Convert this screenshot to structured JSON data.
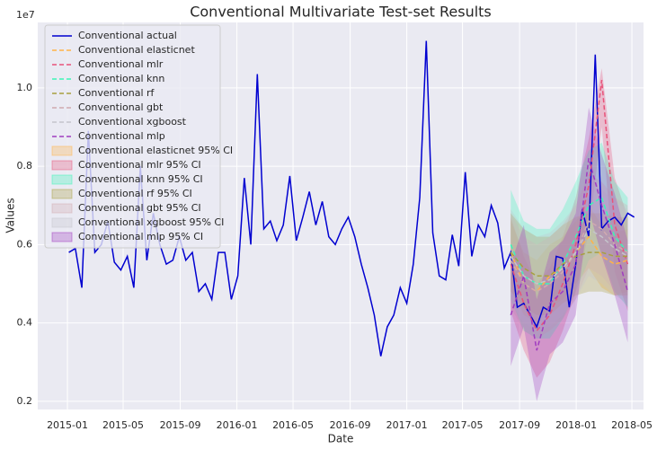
{
  "chart_data": {
    "type": "line",
    "title": "Conventional Multivariate Test-set Results",
    "xlabel": "Date",
    "ylabel": "Values",
    "y_offset_label": "1e7",
    "xlim": [
      "2014-10-29",
      "2018-05-26"
    ],
    "xticks": [
      "2015-01",
      "2015-05",
      "2015-09",
      "2016-01",
      "2016-05",
      "2016-09",
      "2017-01",
      "2017-05",
      "2017-09",
      "2018-01",
      "2018-05"
    ],
    "ylim": [
      0.179,
      1.167
    ],
    "yticks": [
      {
        "value": 0.2,
        "label": "0.2"
      },
      {
        "value": 0.4,
        "label": "0.4"
      },
      {
        "value": 0.6,
        "label": "0.6"
      },
      {
        "value": 0.8,
        "label": "0.8"
      },
      {
        "value": 1,
        "label": "1.0"
      }
    ],
    "grid": true,
    "legend": "upper left",
    "series": [
      {
        "name": "Conventional actual",
        "color": "#0000d0",
        "linestyle": "solid",
        "x": [
          "2015-01-04",
          "2015-01-18",
          "2015-02-01",
          "2015-02-15",
          "2015-03-01",
          "2015-03-15",
          "2015-03-29",
          "2015-04-12",
          "2015-04-26",
          "2015-05-10",
          "2015-05-24",
          "2015-06-07",
          "2015-06-21",
          "2015-07-05",
          "2015-07-19",
          "2015-08-02",
          "2015-08-16",
          "2015-08-30",
          "2015-09-13",
          "2015-09-27",
          "2015-10-11",
          "2015-10-25",
          "2015-11-08",
          "2015-11-22",
          "2015-12-06",
          "2015-12-20",
          "2016-01-03",
          "2016-01-17",
          "2016-01-31",
          "2016-02-14",
          "2016-02-28",
          "2016-03-13",
          "2016-03-27",
          "2016-04-10",
          "2016-04-24",
          "2016-05-08",
          "2016-05-22",
          "2016-06-05",
          "2016-06-19",
          "2016-07-03",
          "2016-07-17",
          "2016-07-31",
          "2016-08-14",
          "2016-08-28",
          "2016-09-11",
          "2016-09-25",
          "2016-10-09",
          "2016-10-23",
          "2016-11-06",
          "2016-11-20",
          "2016-12-04",
          "2016-12-18",
          "2017-01-01",
          "2017-01-15",
          "2017-01-29",
          "2017-02-12",
          "2017-02-26",
          "2017-03-12",
          "2017-03-26",
          "2017-04-09",
          "2017-04-23",
          "2017-05-07",
          "2017-05-21",
          "2017-06-04",
          "2017-06-18",
          "2017-07-02",
          "2017-07-16",
          "2017-07-30",
          "2017-08-13",
          "2017-08-27",
          "2017-09-10",
          "2017-09-24",
          "2017-10-08",
          "2017-10-22",
          "2017-11-05",
          "2017-11-19",
          "2017-12-03",
          "2017-12-17",
          "2017-12-31",
          "2018-01-14",
          "2018-01-28",
          "2018-02-11",
          "2018-02-25",
          "2018-03-11",
          "2018-03-25",
          "2018-04-08",
          "2018-04-22",
          "2018-05-06"
        ],
        "values": [
          0.58,
          0.59,
          0.49,
          0.89,
          0.58,
          0.6,
          0.66,
          0.555,
          0.535,
          0.57,
          0.49,
          0.8,
          0.56,
          0.68,
          0.6,
          0.55,
          0.56,
          0.62,
          0.56,
          0.58,
          0.48,
          0.5,
          0.46,
          0.58,
          0.58,
          0.46,
          0.52,
          0.77,
          0.6,
          1.035,
          0.64,
          0.66,
          0.61,
          0.65,
          0.775,
          0.61,
          0.67,
          0.735,
          0.65,
          0.71,
          0.62,
          0.6,
          0.64,
          0.67,
          0.62,
          0.55,
          0.49,
          0.42,
          0.315,
          0.39,
          0.42,
          0.49,
          0.45,
          0.55,
          0.72,
          1.12,
          0.63,
          0.52,
          0.51,
          0.625,
          0.545,
          0.785,
          0.57,
          0.65,
          0.62,
          0.7,
          0.655,
          0.54,
          0.58,
          0.44,
          0.45,
          0.42,
          0.39,
          0.44,
          0.43,
          0.57,
          0.565,
          0.44,
          0.55,
          0.69,
          0.62,
          1.085,
          0.64,
          0.66,
          0.67,
          0.65,
          0.68,
          0.67
        ]
      },
      {
        "name": "Conventional elasticnet",
        "color": "#ffb347",
        "linestyle": "dashed",
        "x": [
          "2017-08-13",
          "2017-09-10",
          "2017-10-08",
          "2017-11-05",
          "2017-12-03",
          "2017-12-31",
          "2018-01-28",
          "2018-02-25",
          "2018-03-25",
          "2018-04-22"
        ],
        "values": [
          0.58,
          0.5,
          0.48,
          0.52,
          0.54,
          0.58,
          0.62,
          0.57,
          0.55,
          0.56
        ]
      },
      {
        "name": "Conventional mlr",
        "color": "#e8537a",
        "linestyle": "dashed",
        "x": [
          "2017-08-13",
          "2017-09-10",
          "2017-10-08",
          "2017-11-05",
          "2017-12-03",
          "2017-12-31",
          "2018-01-28",
          "2018-02-25",
          "2018-03-25",
          "2018-04-22"
        ],
        "values": [
          0.55,
          0.45,
          0.38,
          0.42,
          0.5,
          0.6,
          0.75,
          1.02,
          0.65,
          0.55
        ]
      },
      {
        "name": "Conventional knn",
        "color": "#3cf5b8",
        "linestyle": "dashed",
        "x": [
          "2017-08-13",
          "2017-09-10",
          "2017-10-08",
          "2017-11-05",
          "2017-12-03",
          "2017-12-31",
          "2018-01-28",
          "2018-02-25",
          "2018-03-25",
          "2018-04-22"
        ],
        "values": [
          0.6,
          0.52,
          0.5,
          0.5,
          0.55,
          0.62,
          0.7,
          0.72,
          0.62,
          0.58
        ]
      },
      {
        "name": "Conventional rf",
        "color": "#a8a040",
        "linestyle": "dashed",
        "x": [
          "2017-08-13",
          "2017-09-10",
          "2017-10-08",
          "2017-11-05",
          "2017-12-03",
          "2017-12-31",
          "2018-01-28",
          "2018-02-25",
          "2018-03-25",
          "2018-04-22"
        ],
        "values": [
          0.58,
          0.54,
          0.52,
          0.52,
          0.55,
          0.57,
          0.58,
          0.58,
          0.57,
          0.57
        ]
      },
      {
        "name": "Conventional gbt",
        "color": "#d0aab0",
        "linestyle": "dashed",
        "x": [
          "2017-08-13",
          "2017-09-10",
          "2017-10-08",
          "2017-11-05",
          "2017-12-03",
          "2017-12-31",
          "2018-01-28",
          "2018-02-25",
          "2018-03-25",
          "2018-04-22"
        ],
        "values": [
          0.56,
          0.5,
          0.48,
          0.5,
          0.53,
          0.58,
          0.66,
          0.64,
          0.6,
          0.58
        ]
      },
      {
        "name": "Conventional xgboost",
        "color": "#c4c4cc",
        "linestyle": "dashed",
        "x": [
          "2017-08-13",
          "2017-09-10",
          "2017-10-08",
          "2017-11-05",
          "2017-12-03",
          "2017-12-31",
          "2018-01-28",
          "2018-02-25",
          "2018-03-25",
          "2018-04-22"
        ],
        "values": [
          0.57,
          0.52,
          0.5,
          0.51,
          0.54,
          0.58,
          0.64,
          0.62,
          0.59,
          0.57
        ]
      },
      {
        "name": "Conventional mlp",
        "color": "#a03cc0",
        "linestyle": "dashed",
        "x": [
          "2017-08-13",
          "2017-09-10",
          "2017-10-08",
          "2017-11-05",
          "2017-12-03",
          "2017-12-31",
          "2018-01-28",
          "2018-02-25",
          "2018-03-25",
          "2018-04-22"
        ],
        "values": [
          0.42,
          0.52,
          0.33,
          0.45,
          0.48,
          0.55,
          0.82,
          0.7,
          0.6,
          0.48
        ]
      }
    ],
    "intervals": [
      {
        "name": "Conventional elasticnet 95% CI",
        "color": "#ffb347",
        "x": [
          "2017-08-13",
          "2017-09-10",
          "2017-10-08",
          "2017-11-05",
          "2017-12-03",
          "2017-12-31",
          "2018-01-28",
          "2018-02-25",
          "2018-03-25",
          "2018-04-22"
        ],
        "lower": [
          0.5,
          0.42,
          0.4,
          0.44,
          0.46,
          0.5,
          0.54,
          0.49,
          0.47,
          0.48
        ],
        "upper": [
          0.66,
          0.58,
          0.56,
          0.6,
          0.62,
          0.66,
          0.7,
          0.65,
          0.63,
          0.64
        ]
      },
      {
        "name": "Conventional mlr 95% CI",
        "color": "#e8537a",
        "x": [
          "2017-08-13",
          "2017-09-10",
          "2017-10-08",
          "2017-11-05",
          "2017-12-03",
          "2017-12-31",
          "2018-01-28",
          "2018-02-25",
          "2018-03-25",
          "2018-04-22"
        ],
        "lower": [
          0.43,
          0.33,
          0.26,
          0.3,
          0.38,
          0.48,
          0.63,
          0.9,
          0.53,
          0.43
        ],
        "upper": [
          0.67,
          0.57,
          0.5,
          0.54,
          0.62,
          0.72,
          0.87,
          1.05,
          0.77,
          0.67
        ]
      },
      {
        "name": "Conventional knn 95% CI",
        "color": "#3cf5b8",
        "x": [
          "2017-08-13",
          "2017-09-10",
          "2017-10-08",
          "2017-11-05",
          "2017-12-03",
          "2017-12-31",
          "2018-01-28",
          "2018-02-25",
          "2018-03-25",
          "2018-04-22"
        ],
        "lower": [
          0.46,
          0.38,
          0.36,
          0.36,
          0.41,
          0.48,
          0.56,
          0.58,
          0.48,
          0.44
        ],
        "upper": [
          0.74,
          0.66,
          0.64,
          0.64,
          0.69,
          0.76,
          0.84,
          0.86,
          0.76,
          0.72
        ]
      },
      {
        "name": "Conventional rf 95% CI",
        "color": "#a8a040",
        "x": [
          "2017-08-13",
          "2017-09-10",
          "2017-10-08",
          "2017-11-05",
          "2017-12-03",
          "2017-12-31",
          "2018-01-28",
          "2018-02-25",
          "2018-03-25",
          "2018-04-22"
        ],
        "lower": [
          0.48,
          0.44,
          0.42,
          0.42,
          0.45,
          0.47,
          0.48,
          0.48,
          0.47,
          0.47
        ],
        "upper": [
          0.68,
          0.64,
          0.62,
          0.62,
          0.65,
          0.67,
          0.68,
          0.68,
          0.67,
          0.67
        ]
      },
      {
        "name": "Conventional gbt 95% CI",
        "color": "#d0aab0",
        "x": [
          "2017-08-13",
          "2017-09-10",
          "2017-10-08",
          "2017-11-05",
          "2017-12-03",
          "2017-12-31",
          "2018-01-28",
          "2018-02-25",
          "2018-03-25",
          "2018-04-22"
        ],
        "lower": [
          0.44,
          0.38,
          0.36,
          0.38,
          0.41,
          0.46,
          0.54,
          0.52,
          0.48,
          0.46
        ],
        "upper": [
          0.68,
          0.62,
          0.6,
          0.62,
          0.65,
          0.7,
          0.78,
          0.76,
          0.72,
          0.7
        ]
      },
      {
        "name": "Conventional xgboost 95% CI",
        "color": "#c4c4cc",
        "x": [
          "2017-08-13",
          "2017-09-10",
          "2017-10-08",
          "2017-11-05",
          "2017-12-03",
          "2017-12-31",
          "2018-01-28",
          "2018-02-25",
          "2018-03-25",
          "2018-04-22"
        ],
        "lower": [
          0.45,
          0.4,
          0.38,
          0.39,
          0.42,
          0.46,
          0.52,
          0.5,
          0.47,
          0.45
        ],
        "upper": [
          0.69,
          0.64,
          0.62,
          0.63,
          0.66,
          0.7,
          0.76,
          0.74,
          0.71,
          0.69
        ]
      },
      {
        "name": "Conventional mlp 95% CI",
        "color": "#a03cc0",
        "x": [
          "2017-08-13",
          "2017-09-10",
          "2017-10-08",
          "2017-11-05",
          "2017-12-03",
          "2017-12-31",
          "2018-01-28",
          "2018-02-25",
          "2018-03-25",
          "2018-04-22"
        ],
        "lower": [
          0.29,
          0.39,
          0.2,
          0.32,
          0.35,
          0.42,
          0.69,
          0.57,
          0.47,
          0.35
        ],
        "upper": [
          0.55,
          0.65,
          0.46,
          0.58,
          0.61,
          0.68,
          0.95,
          0.83,
          0.73,
          0.61
        ]
      }
    ]
  }
}
